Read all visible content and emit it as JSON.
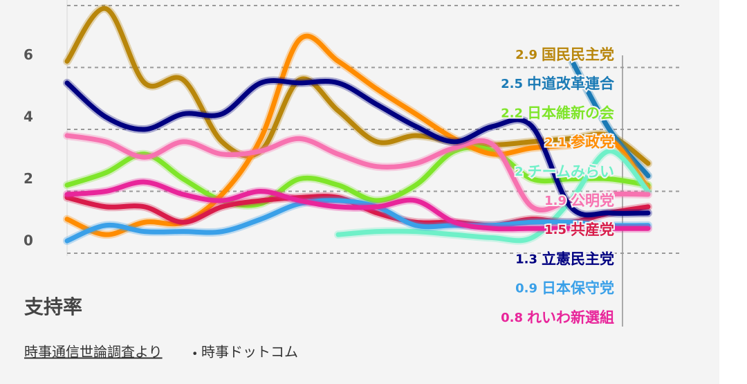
{
  "chart_data": {
    "type": "line",
    "categories": [
      null,
      null,
      null,
      null,
      null,
      null,
      null,
      null,
      null,
      null,
      null,
      null,
      null,
      null,
      null,
      null
    ],
    "ylim": [
      0,
      8
    ],
    "yticks": [
      0,
      2,
      4,
      6
    ],
    "grid": true,
    "y_label": "支持率",
    "source": "時事通信世論調査より",
    "separator": "•",
    "source_site": "時事ドットコム",
    "series": [
      {
        "name": "国民民主党",
        "color": "#b8860b",
        "values": [
          6.2,
          7.9,
          5.5,
          5.6,
          3.6,
          3.3,
          5.6,
          4.6,
          3.6,
          3.8,
          3.6,
          3.5,
          3.6,
          3.7,
          3.8,
          2.9
        ]
      },
      {
        "name": "中道改革連合",
        "color": "#1a7ab5",
        "values": [
          null,
          null,
          null,
          null,
          null,
          null,
          null,
          null,
          null,
          null,
          null,
          null,
          null,
          6.3,
          4.0,
          2.5
        ]
      },
      {
        "name": "日本維新の会",
        "color": "#7fe52a",
        "values": [
          2.2,
          2.6,
          3.2,
          2.4,
          1.7,
          1.6,
          2.4,
          2.2,
          1.7,
          2.2,
          3.3,
          3.3,
          2.4,
          2.4,
          2.4,
          2.2
        ]
      },
      {
        "name": "参政党",
        "color": "#ff8c00",
        "values": [
          1.1,
          0.6,
          1.0,
          1.0,
          1.9,
          3.7,
          6.9,
          6.2,
          5.3,
          4.5,
          3.7,
          3.2,
          3.4,
          3.5,
          3.7,
          2.1
        ]
      },
      {
        "name": "チームみらい",
        "color": "#6ff0c8",
        "values": [
          null,
          null,
          null,
          null,
          null,
          null,
          null,
          0.6,
          0.7,
          0.7,
          0.6,
          0.5,
          0.5,
          1.7,
          3.3,
          2
        ]
      },
      {
        "name": "公明党",
        "color": "#f772b0",
        "values": [
          3.8,
          3.6,
          3.1,
          3.6,
          3.2,
          3.3,
          3.7,
          3.2,
          2.8,
          2.9,
          3.4,
          3.5,
          1.5,
          1.7,
          1.9,
          1.9
        ]
      },
      {
        "name": "共産党",
        "color": "#d81b4a",
        "values": [
          1.8,
          1.5,
          1.5,
          1.0,
          1.5,
          1.7,
          1.8,
          1.8,
          1.3,
          1.0,
          1.0,
          0.9,
          1.1,
          1.0,
          1.3,
          1.5
        ]
      },
      {
        "name": "立憲民主党",
        "color": "#000080",
        "values": [
          5.5,
          4.4,
          4.0,
          4.5,
          4.5,
          5.5,
          5.5,
          5.5,
          4.8,
          4.1,
          3.6,
          4.1,
          4.1,
          1.5,
          1.3,
          1.3
        ]
      },
      {
        "name": "日本保守党",
        "color": "#3aa0e8",
        "values": [
          0.4,
          0.9,
          0.7,
          0.7,
          0.7,
          1.1,
          1.6,
          1.7,
          1.5,
          0.9,
          0.9,
          0.9,
          1.0,
          1.0,
          0.9,
          0.9
        ]
      },
      {
        "name": "れいわ新選組",
        "color": "#e8259a",
        "values": [
          1.9,
          2.0,
          2.3,
          1.9,
          1.7,
          2.0,
          1.7,
          1.5,
          1.5,
          1.7,
          1.0,
          0.8,
          0.8,
          0.8,
          0.8,
          0.8
        ]
      }
    ]
  }
}
